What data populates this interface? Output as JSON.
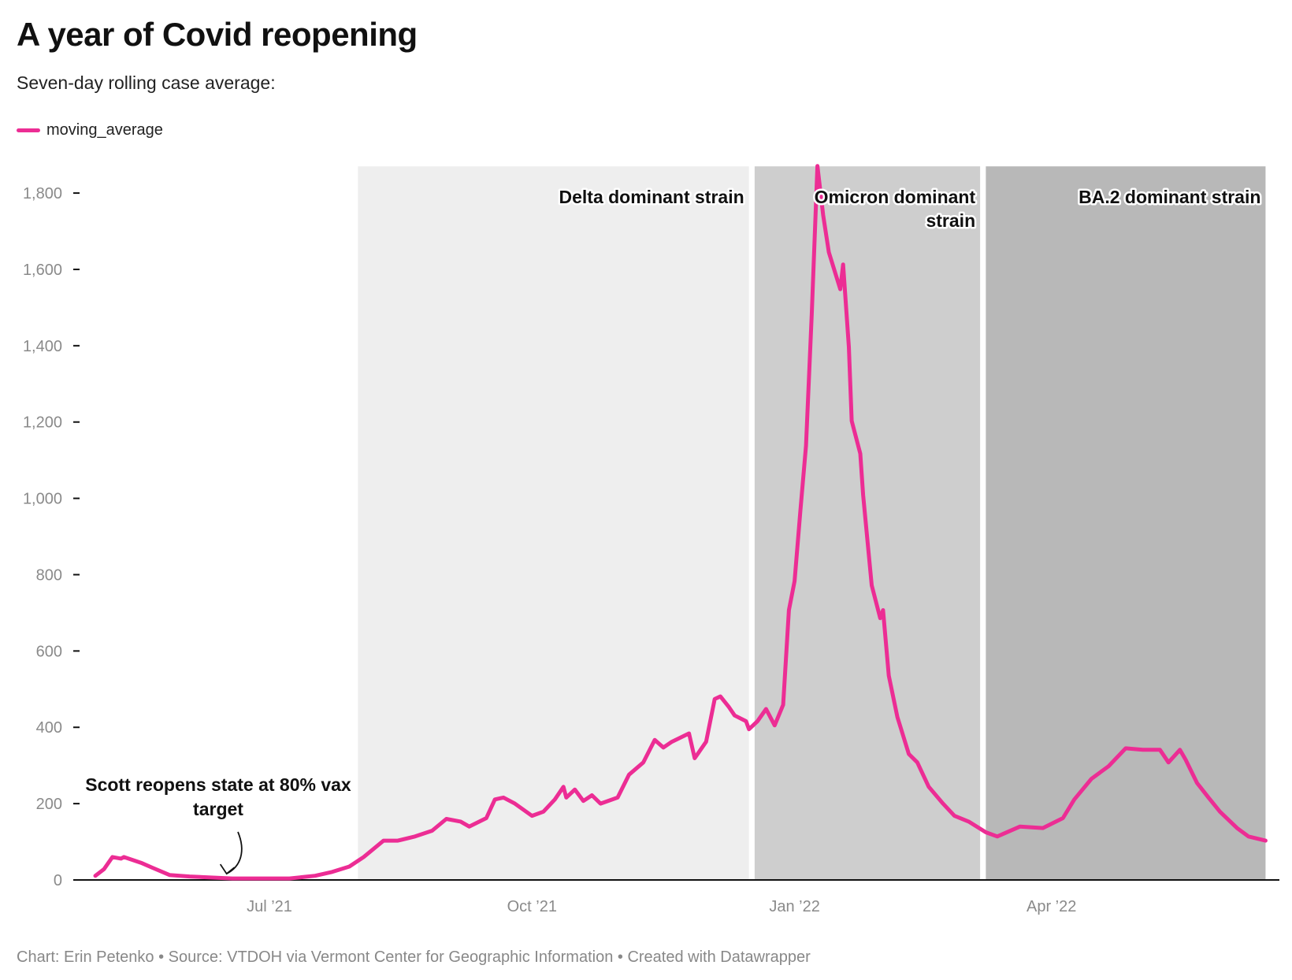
{
  "title": "A year of Covid reopening",
  "subtitle": "Seven-day rolling case average:",
  "footer": "Chart: Erin Petenko • Source: VTDOH via Vermont Center for Geographic Information • Created with Datawrapper",
  "chart_data": {
    "type": "line",
    "title": "A year of Covid reopening",
    "subtitle": "Seven-day rolling case average:",
    "xlabel": "",
    "ylabel": "",
    "ylim": [
      0,
      1870
    ],
    "xlim": [
      "2021-05-01",
      "2022-06-15"
    ],
    "grid": false,
    "legend_placement": "top-left",
    "y_ticks": [
      {
        "value": 0,
        "label": "0"
      },
      {
        "value": 200,
        "label": "200"
      },
      {
        "value": 400,
        "label": "400"
      },
      {
        "value": 600,
        "label": "600"
      },
      {
        "value": 800,
        "label": "800"
      },
      {
        "value": 1000,
        "label": "1,000"
      },
      {
        "value": 1200,
        "label": "1,200"
      },
      {
        "value": 1400,
        "label": "1,400"
      },
      {
        "value": 1600,
        "label": "1,600"
      },
      {
        "value": 1800,
        "label": "1,800"
      }
    ],
    "x_ticks": [
      {
        "date": "2021-07-01",
        "label": "Jul ’21"
      },
      {
        "date": "2021-10-01",
        "label": "Oct ’21"
      },
      {
        "date": "2022-01-01",
        "label": "Jan ’22"
      },
      {
        "date": "2022-04-01",
        "label": "Apr ’22"
      }
    ],
    "bands": [
      {
        "start": "2021-08-01",
        "end": "2021-12-16",
        "color": "#eeeeee",
        "label": [
          "Delta dominant strain"
        ]
      },
      {
        "start": "2021-12-18",
        "end": "2022-03-07",
        "color": "#cecece",
        "label": [
          "Omicron dominant",
          "strain"
        ]
      },
      {
        "start": "2022-03-09",
        "end": "2022-06-15",
        "color": "#b8b8b8",
        "label": [
          "BA.2 dominant strain"
        ]
      }
    ],
    "annotations": [
      {
        "date": "2021-06-16",
        "value": 4,
        "label": [
          "Scott reopens state at 80% vax",
          "target"
        ]
      }
    ],
    "series": [
      {
        "name": "moving_average",
        "color": "#ec2d94",
        "points": [
          [
            "2021-05-01",
            11
          ],
          [
            "2021-05-04",
            28
          ],
          [
            "2021-05-07",
            60
          ],
          [
            "2021-05-10",
            56
          ],
          [
            "2021-05-11",
            60
          ],
          [
            "2021-05-17",
            45
          ],
          [
            "2021-05-21",
            32
          ],
          [
            "2021-05-27",
            13
          ],
          [
            "2021-06-03",
            9
          ],
          [
            "2021-06-18",
            4
          ],
          [
            "2021-07-08",
            4
          ],
          [
            "2021-07-17",
            11
          ],
          [
            "2021-07-23",
            21
          ],
          [
            "2021-07-29",
            35
          ],
          [
            "2021-08-03",
            60
          ],
          [
            "2021-08-10",
            103
          ],
          [
            "2021-08-15",
            103
          ],
          [
            "2021-08-21",
            114
          ],
          [
            "2021-08-27",
            129
          ],
          [
            "2021-09-01",
            160
          ],
          [
            "2021-09-06",
            153
          ],
          [
            "2021-09-09",
            140
          ],
          [
            "2021-09-15",
            162
          ],
          [
            "2021-09-18",
            211
          ],
          [
            "2021-09-21",
            216
          ],
          [
            "2021-09-25",
            200
          ],
          [
            "2021-10-01",
            168
          ],
          [
            "2021-10-05",
            179
          ],
          [
            "2021-10-09",
            211
          ],
          [
            "2021-10-12",
            244
          ],
          [
            "2021-10-13",
            216
          ],
          [
            "2021-10-16",
            237
          ],
          [
            "2021-10-19",
            207
          ],
          [
            "2021-10-22",
            222
          ],
          [
            "2021-10-25",
            200
          ],
          [
            "2021-10-31",
            216
          ],
          [
            "2021-11-04",
            276
          ],
          [
            "2021-11-09",
            308
          ],
          [
            "2021-11-13",
            367
          ],
          [
            "2021-11-16",
            347
          ],
          [
            "2021-11-19",
            362
          ],
          [
            "2021-11-25",
            384
          ],
          [
            "2021-11-27",
            319
          ],
          [
            "2021-12-01",
            362
          ],
          [
            "2021-12-04",
            474
          ],
          [
            "2021-12-06",
            481
          ],
          [
            "2021-12-09",
            453
          ],
          [
            "2021-12-11",
            431
          ],
          [
            "2021-12-15",
            416
          ],
          [
            "2021-12-16",
            395
          ],
          [
            "2021-12-19",
            416
          ],
          [
            "2021-12-22",
            448
          ],
          [
            "2021-12-25",
            405
          ],
          [
            "2021-12-28",
            459
          ],
          [
            "2021-12-30",
            707
          ],
          [
            "2022-01-01",
            783
          ],
          [
            "2022-01-03",
            966
          ],
          [
            "2022-01-05",
            1138
          ],
          [
            "2022-01-07",
            1483
          ],
          [
            "2022-01-09",
            1871
          ],
          [
            "2022-01-11",
            1742
          ],
          [
            "2022-01-13",
            1645
          ],
          [
            "2022-01-17",
            1548
          ],
          [
            "2022-01-18",
            1613
          ],
          [
            "2022-01-20",
            1397
          ],
          [
            "2022-01-21",
            1203
          ],
          [
            "2022-01-24",
            1117
          ],
          [
            "2022-01-25",
            1009
          ],
          [
            "2022-01-28",
            772
          ],
          [
            "2022-01-31",
            686
          ],
          [
            "2022-02-01",
            707
          ],
          [
            "2022-02-03",
            535
          ],
          [
            "2022-02-06",
            427
          ],
          [
            "2022-02-10",
            330
          ],
          [
            "2022-02-13",
            308
          ],
          [
            "2022-02-17",
            244
          ],
          [
            "2022-02-22",
            200
          ],
          [
            "2022-02-26",
            168
          ],
          [
            "2022-03-03",
            153
          ],
          [
            "2022-03-09",
            125
          ],
          [
            "2022-03-13",
            114
          ],
          [
            "2022-03-21",
            140
          ],
          [
            "2022-03-29",
            136
          ],
          [
            "2022-04-05",
            162
          ],
          [
            "2022-04-09",
            211
          ],
          [
            "2022-04-15",
            265
          ],
          [
            "2022-04-21",
            298
          ],
          [
            "2022-04-27",
            345
          ],
          [
            "2022-05-03",
            341
          ],
          [
            "2022-05-09",
            341
          ],
          [
            "2022-05-12",
            308
          ],
          [
            "2022-05-16",
            341
          ],
          [
            "2022-05-18",
            315
          ],
          [
            "2022-05-22",
            254
          ],
          [
            "2022-05-26",
            216
          ],
          [
            "2022-05-30",
            179
          ],
          [
            "2022-06-05",
            136
          ],
          [
            "2022-06-09",
            114
          ],
          [
            "2022-06-15",
            103
          ]
        ]
      }
    ]
  }
}
